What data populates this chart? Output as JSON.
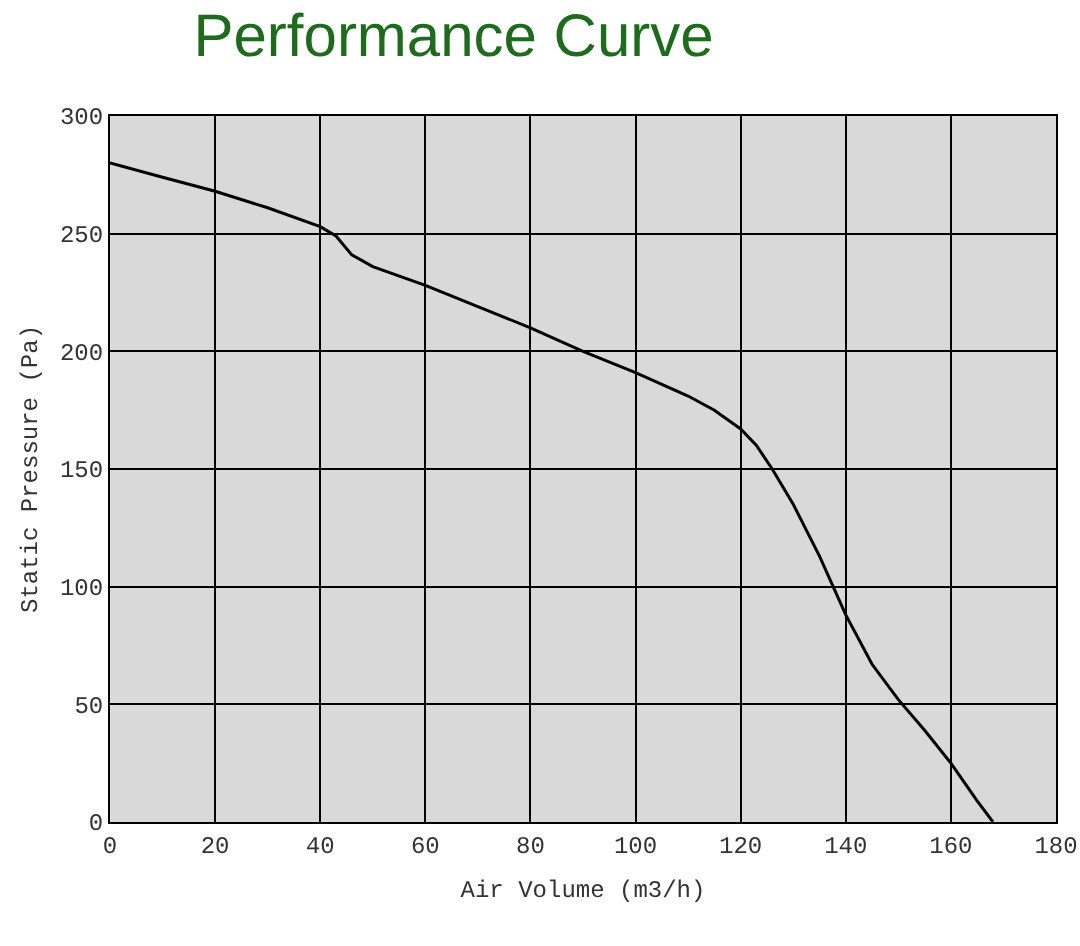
{
  "chart_data": {
    "type": "line",
    "title": "Performance Curve",
    "xlabel": "Air Volume (m3/h)",
    "ylabel": "Static Pressure (Pa)",
    "x": [
      0,
      10,
      20,
      30,
      40,
      43,
      46,
      50,
      60,
      70,
      80,
      90,
      100,
      110,
      115,
      120,
      123,
      126,
      130,
      135,
      140,
      145,
      150,
      155,
      160,
      165,
      168
    ],
    "series": [
      {
        "color": "#000000",
        "values": [
          280,
          274,
          268,
          261,
          253,
          249,
          241,
          236,
          228,
          219,
          210,
          200,
          191,
          181,
          175,
          167,
          160,
          150,
          135,
          113,
          88,
          67,
          52,
          39,
          25,
          9,
          0
        ]
      }
    ],
    "xlim": [
      0,
      180
    ],
    "xticks": [
      0,
      20,
      40,
      60,
      80,
      100,
      120,
      140,
      160,
      180
    ],
    "ylim": [
      0,
      300
    ],
    "yticks": [
      0,
      50,
      100,
      150,
      200,
      250,
      300
    ],
    "grid": true,
    "marker": "none",
    "line_style": "solid"
  }
}
